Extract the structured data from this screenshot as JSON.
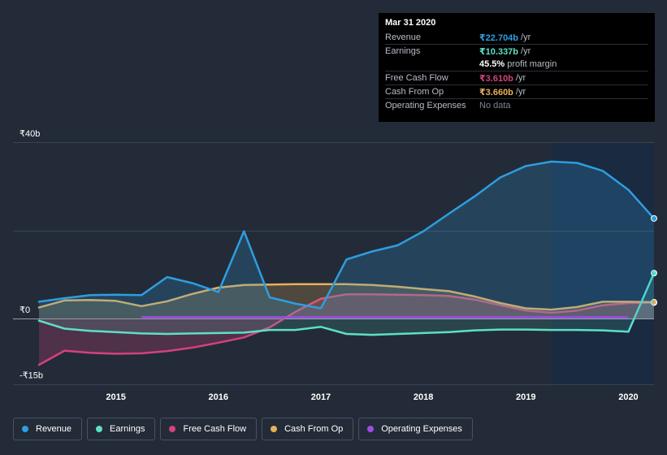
{
  "tooltip": {
    "date": "Mar 31 2020",
    "rows": [
      {
        "label": "Revenue",
        "value": "₹22.704b",
        "unit": "/yr",
        "color": "#2d9ee0"
      },
      {
        "label": "Earnings",
        "value": "₹10.337b",
        "unit": "/yr",
        "color": "#5ce0c6"
      },
      {
        "label": "",
        "value": "45.5%",
        "unit": "profit margin",
        "color": "#ffffff"
      },
      {
        "label": "Free Cash Flow",
        "value": "₹3.610b",
        "unit": "/yr",
        "color": "#d3427c"
      },
      {
        "label": "Cash From Op",
        "value": "₹3.660b",
        "unit": "/yr",
        "color": "#e8b05a"
      },
      {
        "label": "Operating Expenses",
        "value": "No data",
        "unit": "",
        "color": "#7d8593"
      }
    ]
  },
  "legend": [
    {
      "label": "Revenue",
      "color": "#2d9ee0"
    },
    {
      "label": "Earnings",
      "color": "#5ce0c6"
    },
    {
      "label": "Free Cash Flow",
      "color": "#d3427c"
    },
    {
      "label": "Cash From Op",
      "color": "#e8b05a"
    },
    {
      "label": "Operating Expenses",
      "color": "#9f4be8"
    }
  ],
  "chart_data": {
    "type": "area",
    "y_tick_labels": [
      "₹40b",
      "₹0",
      "-₹15b"
    ],
    "ylim": [
      -15,
      40
    ],
    "xlim": [
      2014.25,
      2020.25
    ],
    "x_tick_labels": [
      "2015",
      "2016",
      "2017",
      "2018",
      "2019",
      "2020"
    ],
    "x_ticks": [
      2015,
      2016,
      2017,
      2018,
      2019,
      2020
    ],
    "highlight_from": 2019.25,
    "grid": true,
    "series": [
      {
        "name": "Revenue",
        "color": "#2d9ee0",
        "points": [
          [
            2014.25,
            3.8
          ],
          [
            2014.5,
            4.6
          ],
          [
            2014.75,
            5.3
          ],
          [
            2015,
            5.4
          ],
          [
            2015.25,
            5.3
          ],
          [
            2015.5,
            9.4
          ],
          [
            2015.75,
            8.0
          ],
          [
            2016,
            6.0
          ],
          [
            2016.25,
            19.8
          ],
          [
            2016.5,
            4.8
          ],
          [
            2016.75,
            3.4
          ],
          [
            2017,
            2.3
          ],
          [
            2017.25,
            13.4
          ],
          [
            2017.5,
            15.2
          ],
          [
            2017.75,
            16.6
          ],
          [
            2018,
            19.8
          ],
          [
            2018.25,
            23.8
          ],
          [
            2018.5,
            27.7
          ],
          [
            2018.75,
            32.0
          ],
          [
            2019,
            34.6
          ],
          [
            2019.25,
            35.6
          ],
          [
            2019.5,
            35.3
          ],
          [
            2019.75,
            33.5
          ],
          [
            2020,
            29.2
          ],
          [
            2020.25,
            22.7
          ]
        ]
      },
      {
        "name": "Earnings",
        "color": "#5ce0c6",
        "points": [
          [
            2014.25,
            -0.5
          ],
          [
            2014.5,
            -2.3
          ],
          [
            2014.75,
            -2.8
          ],
          [
            2015,
            -3.1
          ],
          [
            2015.25,
            -3.4
          ],
          [
            2015.5,
            -3.5
          ],
          [
            2015.75,
            -3.4
          ],
          [
            2016,
            -3.3
          ],
          [
            2016.25,
            -3.2
          ],
          [
            2016.5,
            -2.6
          ],
          [
            2016.75,
            -2.6
          ],
          [
            2017,
            -1.9
          ],
          [
            2017.25,
            -3.5
          ],
          [
            2017.5,
            -3.7
          ],
          [
            2017.75,
            -3.5
          ],
          [
            2018,
            -3.3
          ],
          [
            2018.25,
            -3.1
          ],
          [
            2018.5,
            -2.7
          ],
          [
            2018.75,
            -2.5
          ],
          [
            2019,
            -2.5
          ],
          [
            2019.25,
            -2.6
          ],
          [
            2019.5,
            -2.6
          ],
          [
            2019.75,
            -2.7
          ],
          [
            2020,
            -3.0
          ],
          [
            2020.25,
            10.3
          ]
        ]
      },
      {
        "name": "Free Cash Flow",
        "color": "#d3427c",
        "points": [
          [
            2014.25,
            -10.5
          ],
          [
            2014.5,
            -7.3
          ],
          [
            2014.75,
            -7.8
          ],
          [
            2015,
            -8.0
          ],
          [
            2015.25,
            -7.9
          ],
          [
            2015.5,
            -7.4
          ],
          [
            2015.75,
            -6.6
          ],
          [
            2016,
            -5.5
          ],
          [
            2016.25,
            -4.3
          ],
          [
            2016.5,
            -2.0
          ],
          [
            2016.75,
            1.5
          ],
          [
            2017,
            4.5
          ],
          [
            2017.25,
            5.5
          ],
          [
            2017.5,
            5.5
          ],
          [
            2017.75,
            5.4
          ],
          [
            2018,
            5.3
          ],
          [
            2018.25,
            5.1
          ],
          [
            2018.5,
            4.3
          ],
          [
            2018.75,
            3.0
          ],
          [
            2019,
            1.8
          ],
          [
            2019.25,
            1.3
          ],
          [
            2019.5,
            1.8
          ],
          [
            2019.75,
            3.0
          ],
          [
            2020,
            3.5
          ],
          [
            2020.25,
            3.6
          ]
        ]
      },
      {
        "name": "Cash From Op",
        "color": "#e8b05a",
        "points": [
          [
            2014.25,
            2.5
          ],
          [
            2014.5,
            4.1
          ],
          [
            2014.75,
            4.2
          ],
          [
            2015,
            4.0
          ],
          [
            2015.25,
            2.8
          ],
          [
            2015.5,
            3.9
          ],
          [
            2015.75,
            5.6
          ],
          [
            2016,
            7.0
          ],
          [
            2016.25,
            7.6
          ],
          [
            2016.5,
            7.7
          ],
          [
            2016.75,
            7.8
          ],
          [
            2017,
            7.8
          ],
          [
            2017.25,
            7.8
          ],
          [
            2017.5,
            7.6
          ],
          [
            2017.75,
            7.2
          ],
          [
            2018,
            6.7
          ],
          [
            2018.25,
            6.2
          ],
          [
            2018.5,
            5.0
          ],
          [
            2018.75,
            3.5
          ],
          [
            2019,
            2.3
          ],
          [
            2019.25,
            2.0
          ],
          [
            2019.5,
            2.6
          ],
          [
            2019.75,
            3.8
          ],
          [
            2020,
            3.8
          ],
          [
            2020.25,
            3.7
          ]
        ]
      },
      {
        "name": "Operating Expenses",
        "color": "#9f4be8",
        "points": [
          [
            2015.25,
            0.3
          ],
          [
            2016.5,
            0.3
          ],
          [
            2017.75,
            0.3
          ],
          [
            2019,
            0.3
          ],
          [
            2020,
            0.3
          ]
        ]
      }
    ]
  }
}
